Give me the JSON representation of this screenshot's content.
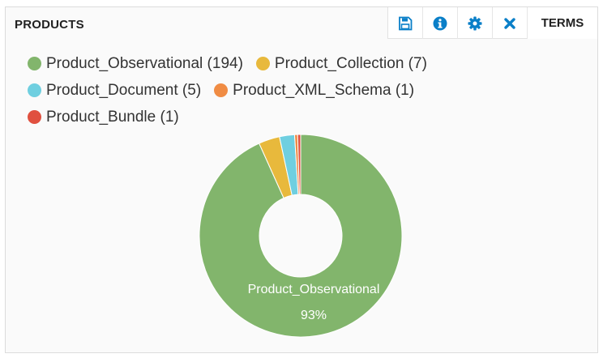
{
  "panel": {
    "title": "PRODUCTS",
    "terms_label": "TERMS",
    "toolbar_icons": [
      "save-icon",
      "info-icon",
      "gear-icon",
      "close-icon"
    ],
    "accent_color": "#0a7fc8"
  },
  "chart_data": {
    "type": "pie",
    "donut": true,
    "categories": [
      "Product_Observational",
      "Product_Collection",
      "Product_Document",
      "Product_XML_Schema",
      "Product_Bundle"
    ],
    "values": [
      194,
      7,
      5,
      1,
      1
    ],
    "colors": [
      "#82b56c",
      "#e8b93c",
      "#6fcfe0",
      "#f08c44",
      "#e0503f"
    ],
    "legend": [
      "Product_Observational (194)",
      "Product_Collection (7)",
      "Product_Document (5)",
      "Product_XML_Schema (1)",
      "Product_Bundle (1)"
    ],
    "legend_position": "top-left",
    "slice_label": {
      "name": "Product_Observational",
      "percent": "93%"
    }
  }
}
